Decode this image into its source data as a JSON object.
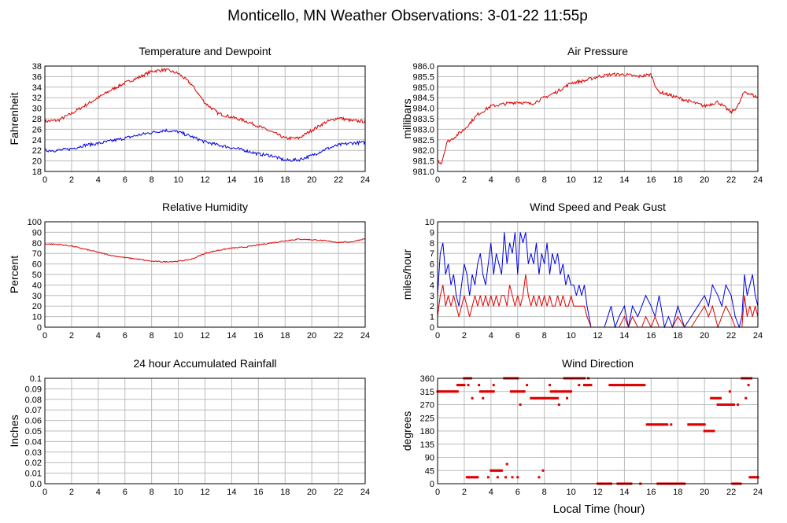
{
  "page": {
    "title": "Monticello, MN Weather Observations: 3-01-22 11:55p",
    "xlabel": "Local Time (hour)"
  },
  "colors": {
    "primary": "#e00000",
    "secondary": "#0000e0",
    "grid": "#bbbbbb"
  },
  "chart_data": [
    {
      "id": "temp",
      "type": "line",
      "title": "Temperature and Dewpoint",
      "ylabel": "Fahrenheit",
      "xlim": [
        0,
        24
      ],
      "ylim": [
        18,
        38
      ],
      "grid": true,
      "xticks": [
        0,
        2,
        4,
        6,
        8,
        10,
        12,
        14,
        16,
        18,
        20,
        22,
        24
      ],
      "yticks": [
        "18",
        "20",
        "22",
        "24",
        "26",
        "28",
        "30",
        "32",
        "34",
        "36",
        "38"
      ],
      "noise": 0.3,
      "series": [
        {
          "color": "#e00000",
          "x": [
            0,
            1,
            2,
            3,
            4,
            5,
            6,
            7,
            8,
            9,
            10,
            11,
            12,
            13,
            14,
            15,
            16,
            17,
            18,
            19,
            20,
            21,
            22,
            23,
            24
          ],
          "y": [
            27.5,
            27.7,
            29,
            30.5,
            32,
            33.5,
            34.8,
            35.8,
            37,
            37.3,
            36.6,
            34.5,
            31,
            29,
            28.3,
            27.6,
            26.6,
            25.5,
            24.3,
            24.3,
            25.8,
            27.3,
            28.2,
            27.6,
            27.5
          ]
        },
        {
          "color": "#0000e0",
          "x": [
            0,
            1,
            2,
            3,
            4,
            5,
            6,
            7,
            8,
            9,
            10,
            11,
            12,
            13,
            14,
            15,
            16,
            17,
            18,
            19,
            20,
            21,
            22,
            23,
            24
          ],
          "y": [
            22,
            22,
            22.3,
            23,
            23.3,
            23.8,
            24.3,
            24.9,
            25.4,
            25.8,
            25.5,
            24.6,
            23.6,
            23,
            22.5,
            22,
            21.3,
            21,
            20.1,
            20.2,
            21,
            22.2,
            23,
            23.4,
            23.5
          ]
        }
      ]
    },
    {
      "id": "pressure",
      "type": "line",
      "title": "Air Pressure",
      "ylabel": "millibars",
      "xlim": [
        0,
        24
      ],
      "ylim": [
        981.0,
        986.0
      ],
      "grid": true,
      "xticks": [
        0,
        2,
        4,
        6,
        8,
        10,
        12,
        14,
        16,
        18,
        20,
        22,
        24
      ],
      "yticks": [
        "981.0",
        "981.5",
        "982.0",
        "982.5",
        "983.0",
        "983.5",
        "984.0",
        "984.5",
        "985.0",
        "985.5",
        "986.0"
      ],
      "noise": 0.08,
      "series": [
        {
          "color": "#e00000",
          "x": [
            0,
            0.3,
            0.7,
            1,
            2,
            3,
            4,
            5,
            6,
            7,
            8,
            9,
            10,
            11,
            12,
            13,
            14,
            15,
            16,
            16.5,
            17,
            18,
            19,
            20,
            21,
            22,
            22.5,
            23,
            24
          ],
          "y": [
            981.5,
            981.4,
            982.4,
            982.5,
            983.0,
            983.7,
            984.1,
            984.2,
            984.3,
            984.2,
            984.5,
            984.8,
            985.2,
            985.3,
            985.5,
            985.6,
            985.6,
            985.5,
            985.6,
            984.8,
            984.7,
            984.5,
            984.3,
            984.1,
            984.3,
            983.8,
            984.1,
            984.8,
            984.5
          ]
        }
      ]
    },
    {
      "id": "humidity",
      "type": "line",
      "title": "Relative Humidity",
      "ylabel": "Percent",
      "xlim": [
        0,
        24
      ],
      "ylim": [
        0,
        100
      ],
      "grid": true,
      "xticks": [
        0,
        2,
        4,
        6,
        8,
        10,
        12,
        14,
        16,
        18,
        20,
        22,
        24
      ],
      "yticks": [
        "0",
        "10",
        "20",
        "30",
        "40",
        "50",
        "60",
        "70",
        "80",
        "90",
        "100"
      ],
      "noise": 0.5,
      "series": [
        {
          "color": "#e00000",
          "x": [
            0,
            1,
            2,
            3,
            4,
            5,
            6,
            7,
            8,
            9,
            10,
            11,
            12,
            13,
            14,
            15,
            16,
            17,
            18,
            19,
            20,
            21,
            22,
            23,
            24
          ],
          "y": [
            79,
            78.5,
            77,
            74,
            71,
            68,
            66,
            64.5,
            62.5,
            62,
            62.5,
            64.5,
            70,
            73,
            75,
            76,
            78,
            80,
            82,
            83.5,
            83,
            82,
            80.5,
            81,
            84
          ]
        }
      ]
    },
    {
      "id": "wind",
      "type": "line",
      "title": "Wind Speed and Peak Gust",
      "ylabel": "miles/hour",
      "xlim": [
        0,
        24
      ],
      "ylim": [
        0,
        10
      ],
      "grid": true,
      "xticks": [
        0,
        2,
        4,
        6,
        8,
        10,
        12,
        14,
        16,
        18,
        20,
        22,
        24
      ],
      "yticks": [
        "0",
        "1",
        "2",
        "3",
        "4",
        "5",
        "6",
        "7",
        "8",
        "9",
        "10"
      ],
      "noise": 0,
      "series": [
        {
          "color": "#0000e0",
          "x": [
            0,
            0.2,
            0.4,
            0.6,
            0.8,
            1,
            1.2,
            1.4,
            1.6,
            1.8,
            2,
            2.2,
            2.4,
            2.6,
            2.8,
            3,
            3.2,
            3.4,
            3.6,
            3.8,
            4,
            4.2,
            4.4,
            4.6,
            4.8,
            5,
            5.2,
            5.4,
            5.6,
            5.8,
            6,
            6.2,
            6.4,
            6.6,
            6.8,
            7,
            7.2,
            7.4,
            7.6,
            7.8,
            8,
            8.2,
            8.4,
            8.6,
            8.8,
            9,
            9.2,
            9.4,
            9.6,
            9.8,
            10,
            10.2,
            10.4,
            10.6,
            10.8,
            11,
            11.2,
            11.5,
            12,
            12.5,
            13,
            13.3,
            13.6,
            14,
            14.3,
            14.6,
            15,
            15.3,
            15.6,
            16,
            16.3,
            16.6,
            17,
            17.3,
            17.6,
            18,
            18.5,
            19,
            19.5,
            20,
            20.3,
            20.6,
            21,
            21.3,
            21.6,
            22,
            22.3,
            22.6,
            22.8,
            23,
            23.2,
            23.4,
            23.6,
            23.8,
            24
          ],
          "y": [
            3,
            7,
            8,
            5,
            6,
            4,
            5,
            3,
            2,
            4,
            6,
            5,
            3,
            5,
            4,
            6,
            7,
            5,
            4,
            6,
            8,
            5,
            7,
            6,
            5,
            9,
            6,
            8,
            7,
            9,
            5,
            9,
            8,
            9,
            6,
            7,
            6,
            8,
            5,
            7,
            6,
            8,
            5,
            7,
            6,
            7,
            5,
            6,
            4,
            5,
            4,
            4,
            3,
            4,
            3,
            4,
            2,
            0,
            0,
            0,
            2,
            0,
            1,
            2,
            0,
            2,
            1,
            2,
            3,
            2,
            1,
            3,
            0,
            1,
            0,
            2,
            0,
            1,
            2,
            3,
            2,
            4,
            3,
            2,
            4,
            3,
            1,
            0,
            1,
            5,
            3,
            4,
            5,
            3,
            2
          ]
        },
        {
          "color": "#e00000",
          "x": [
            0,
            0.2,
            0.4,
            0.6,
            0.8,
            1,
            1.2,
            1.4,
            1.6,
            1.8,
            2,
            2.2,
            2.4,
            2.6,
            2.8,
            3,
            3.2,
            3.4,
            3.6,
            3.8,
            4,
            4.2,
            4.4,
            4.6,
            4.8,
            5,
            5.2,
            5.4,
            5.6,
            5.8,
            6,
            6.2,
            6.4,
            6.6,
            6.8,
            7,
            7.2,
            7.4,
            7.6,
            7.8,
            8,
            8.2,
            8.4,
            8.6,
            8.8,
            9,
            9.2,
            9.4,
            9.6,
            9.8,
            10,
            10.2,
            10.4,
            10.6,
            10.8,
            11,
            11.2,
            11.5,
            12,
            12.5,
            13,
            13.3,
            13.6,
            14,
            14.3,
            14.6,
            15,
            15.3,
            15.6,
            16,
            16.3,
            16.6,
            17,
            17.3,
            17.6,
            18,
            18.5,
            19,
            19.5,
            20,
            20.3,
            20.6,
            21,
            21.3,
            21.6,
            22,
            22.3,
            22.6,
            22.8,
            23,
            23.2,
            23.4,
            23.6,
            23.8,
            24
          ],
          "y": [
            1,
            3,
            4,
            2,
            3,
            2,
            3,
            2,
            1,
            2,
            3,
            2,
            1,
            2,
            3,
            2,
            3,
            2,
            3,
            2,
            3,
            2,
            3,
            2,
            3,
            3,
            2,
            4,
            3,
            2,
            3,
            2,
            3,
            5,
            3,
            2,
            3,
            2,
            3,
            2,
            3,
            2,
            3,
            2,
            2,
            3,
            2,
            3,
            2,
            2,
            3,
            2,
            2,
            2,
            2,
            2,
            1,
            0,
            0,
            0,
            0,
            0,
            0,
            1,
            0,
            1,
            0,
            0,
            1,
            0,
            1,
            0,
            0,
            0,
            0,
            1,
            0,
            0,
            1,
            2,
            1,
            2,
            0,
            1,
            2,
            1,
            0,
            0,
            0,
            3,
            1,
            2,
            1,
            2,
            1
          ]
        }
      ]
    },
    {
      "id": "rain",
      "type": "line",
      "title": "24 hour Accumulated Rainfall",
      "ylabel": "Inches",
      "xlim": [
        0,
        24
      ],
      "ylim": [
        0,
        0.1
      ],
      "grid": true,
      "xticks": [
        0,
        2,
        4,
        6,
        8,
        10,
        12,
        14,
        16,
        18,
        20,
        22,
        24
      ],
      "yticks": [
        "0.0",
        "0.01",
        "0.02",
        "0.03",
        "0.04",
        "0.05",
        "0.06",
        "0.07",
        "0.08",
        "0.09",
        "0.1"
      ],
      "noise": 0,
      "series": [
        {
          "color": "#e00000",
          "x": [
            0,
            24
          ],
          "y": [
            0,
            0
          ]
        }
      ]
    },
    {
      "id": "direction",
      "type": "scatter",
      "title": "Wind Direction",
      "ylabel": "degrees",
      "xlim": [
        0,
        24
      ],
      "ylim": [
        0,
        360
      ],
      "grid": true,
      "xticks": [
        0,
        2,
        4,
        6,
        8,
        10,
        12,
        14,
        16,
        18,
        20,
        22,
        24
      ],
      "yticks": [
        "0",
        "45",
        "90",
        "135",
        "180",
        "225",
        "270",
        "315",
        "360"
      ],
      "segments": [
        {
          "x0": 0,
          "x1": 1.5,
          "y": 315
        },
        {
          "x0": 1.5,
          "x1": 2.0,
          "y": 337
        },
        {
          "x0": 2.0,
          "x1": 2.5,
          "y": 360
        },
        {
          "x0": 2.2,
          "x1": 3.0,
          "y": 22
        },
        {
          "x0": 3.2,
          "x1": 4.2,
          "y": 315
        },
        {
          "x0": 4.0,
          "x1": 4.8,
          "y": 45
        },
        {
          "x0": 5.0,
          "x1": 6.0,
          "y": 360
        },
        {
          "x0": 5.5,
          "x1": 6.5,
          "y": 315
        },
        {
          "x0": 7.0,
          "x1": 9.0,
          "y": 292
        },
        {
          "x0": 8.5,
          "x1": 10.0,
          "y": 315
        },
        {
          "x0": 9.5,
          "x1": 11.0,
          "y": 360
        },
        {
          "x0": 11.0,
          "x1": 11.5,
          "y": 337
        },
        {
          "x0": 12.0,
          "x1": 13.0,
          "y": 0
        },
        {
          "x0": 13.0,
          "x1": 15.5,
          "y": 337
        },
        {
          "x0": 13.5,
          "x1": 14.5,
          "y": 0
        },
        {
          "x0": 15.7,
          "x1": 17.2,
          "y": 202
        },
        {
          "x0": 16.5,
          "x1": 18.5,
          "y": 0
        },
        {
          "x0": 18.8,
          "x1": 20.0,
          "y": 202
        },
        {
          "x0": 20.0,
          "x1": 20.7,
          "y": 180
        },
        {
          "x0": 20.5,
          "x1": 21.2,
          "y": 292
        },
        {
          "x0": 21.0,
          "x1": 22.2,
          "y": 270
        },
        {
          "x0": 22.1,
          "x1": 22.7,
          "y": 0
        },
        {
          "x0": 22.8,
          "x1": 23.5,
          "y": 360
        },
        {
          "x0": 23.4,
          "x1": 24.0,
          "y": 22
        }
      ],
      "points": [
        {
          "x": 2.3,
          "y": 337
        },
        {
          "x": 2.6,
          "y": 292
        },
        {
          "x": 3.1,
          "y": 337
        },
        {
          "x": 3.4,
          "y": 292
        },
        {
          "x": 3.8,
          "y": 22
        },
        {
          "x": 4.5,
          "y": 22
        },
        {
          "x": 4.2,
          "y": 337
        },
        {
          "x": 5.2,
          "y": 67
        },
        {
          "x": 5.6,
          "y": 22
        },
        {
          "x": 6.0,
          "y": 22
        },
        {
          "x": 5.1,
          "y": 22
        },
        {
          "x": 6.2,
          "y": 270
        },
        {
          "x": 6.7,
          "y": 337
        },
        {
          "x": 7.6,
          "y": 22
        },
        {
          "x": 7.9,
          "y": 45
        },
        {
          "x": 8.4,
          "y": 337
        },
        {
          "x": 9.1,
          "y": 270
        },
        {
          "x": 9.7,
          "y": 292
        },
        {
          "x": 10.6,
          "y": 337
        },
        {
          "x": 11.3,
          "y": 360
        },
        {
          "x": 12.9,
          "y": 337
        },
        {
          "x": 15.2,
          "y": 0
        },
        {
          "x": 17.5,
          "y": 202
        },
        {
          "x": 21.9,
          "y": 315
        },
        {
          "x": 22.5,
          "y": 270
        },
        {
          "x": 23.1,
          "y": 292
        },
        {
          "x": 23.3,
          "y": 337
        },
        {
          "x": 23.5,
          "y": 360
        }
      ]
    }
  ]
}
